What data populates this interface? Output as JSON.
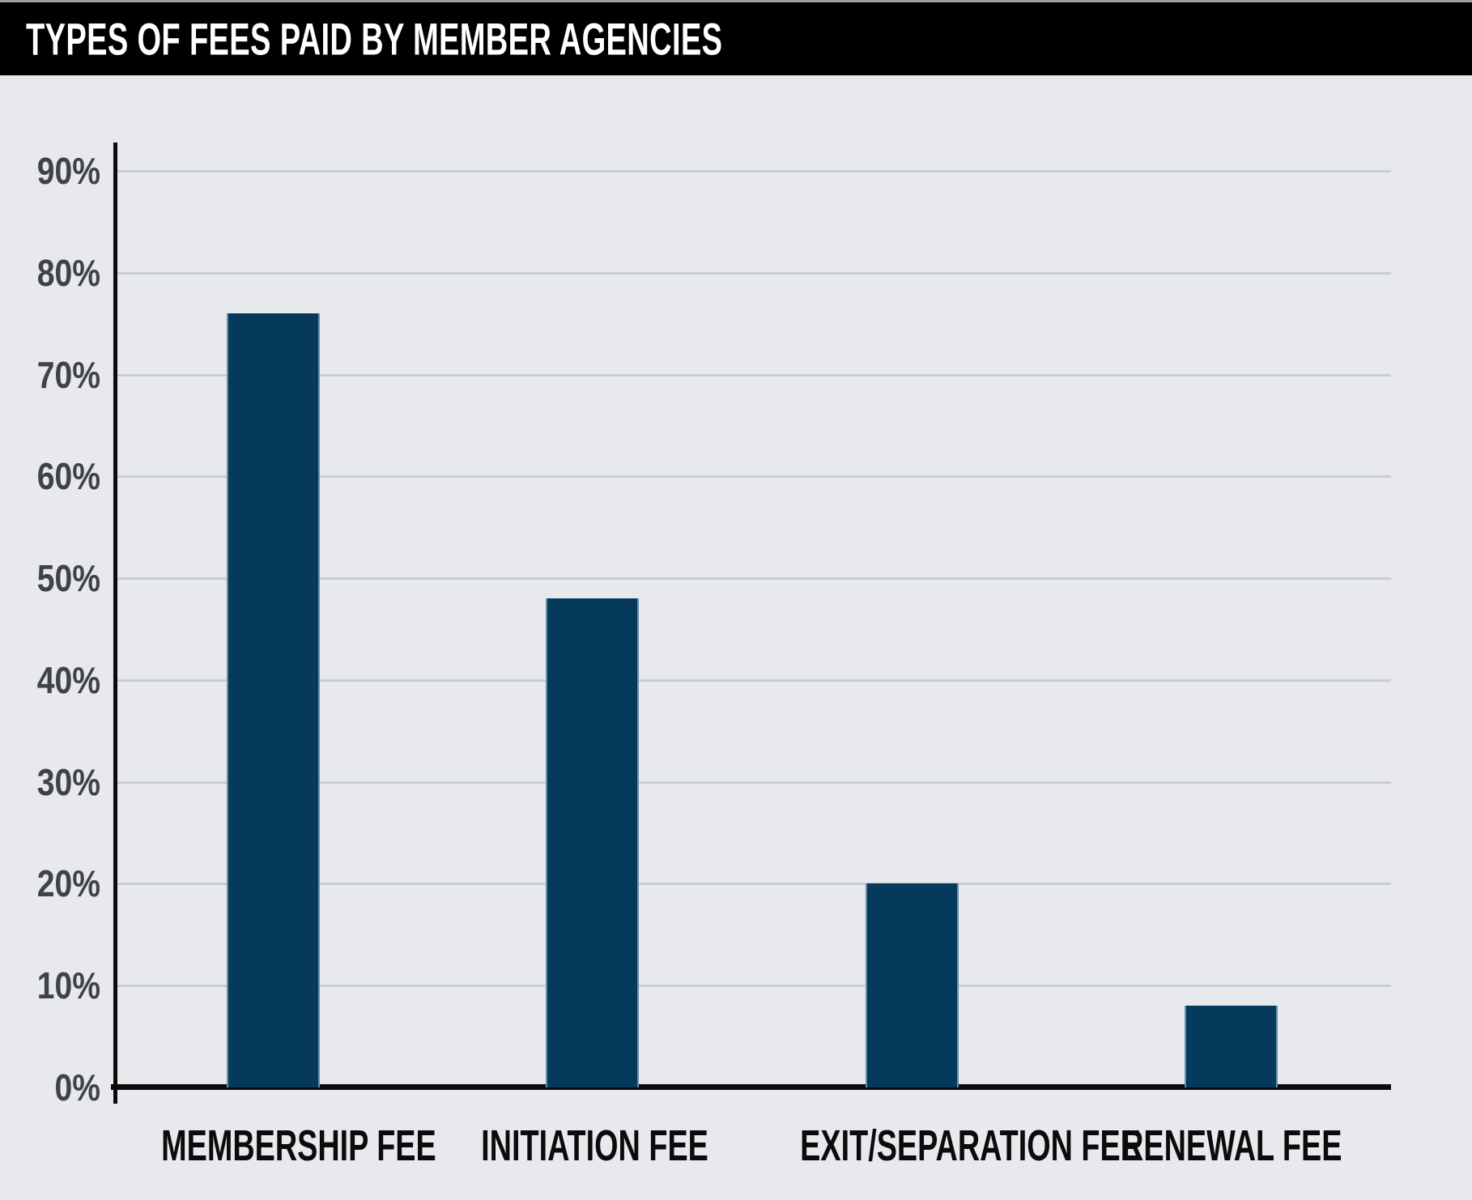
{
  "header": {
    "title": "TYPES OF FEES PAID BY MEMBER AGENCIES"
  },
  "chart_data": {
    "type": "bar",
    "title": "TYPES OF FEES PAID BY MEMBER AGENCIES",
    "categories": [
      "MEMBERSHIP FEE",
      "INITIATION FEE",
      "EXIT/SEPARATION FEE",
      "RENEWAL FEE"
    ],
    "values": [
      76,
      48,
      20,
      8
    ],
    "unit": "%",
    "xlabel": "",
    "ylabel": "",
    "ylim": [
      0,
      95
    ],
    "y_ticks": [
      0,
      10,
      20,
      30,
      40,
      50,
      60,
      70,
      80,
      90
    ],
    "y_tick_labels": [
      "0%",
      "10%",
      "20%",
      "30%",
      "40%",
      "50%",
      "60%",
      "70%",
      "80%",
      "90%"
    ],
    "grid": true,
    "legend": "none",
    "colors": {
      "background": "#e7e9ed",
      "header_background": "#000000",
      "title_text": "#ffffff",
      "bar_fill": "#053a5d",
      "bar_edge": "#82a2bc",
      "axis": "#0b0b0b",
      "gridline": "#c9ced3",
      "tick_label": "#404346",
      "category_label": "#0b0b0b"
    }
  }
}
